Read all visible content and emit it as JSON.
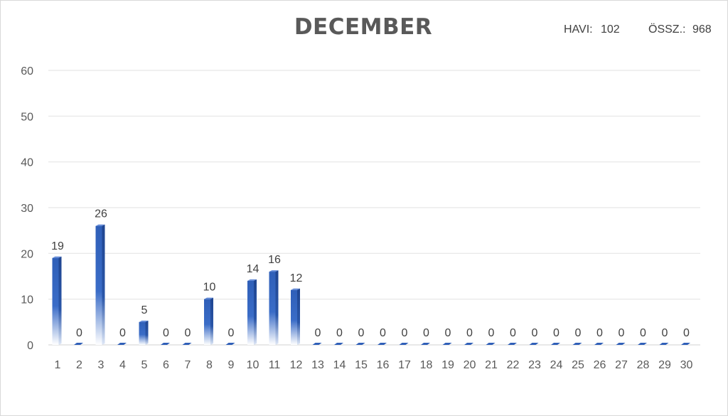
{
  "header": {
    "title": "DECEMBER",
    "havi_label": "HAVI:",
    "havi_value": "102",
    "ossz_label": "ÖSSZ.:",
    "ossz_value": "968"
  },
  "colors": {
    "bar_top": "#2f5fb8",
    "bar_side": "#1f4590",
    "grid": "#e6e6e6",
    "text": "#595959"
  },
  "chart_data": {
    "type": "bar",
    "title": "DECEMBER",
    "categories": [
      "1",
      "2",
      "3",
      "4",
      "5",
      "6",
      "7",
      "8",
      "9",
      "10",
      "11",
      "12",
      "13",
      "14",
      "15",
      "16",
      "17",
      "18",
      "19",
      "20",
      "21",
      "22",
      "23",
      "24",
      "25",
      "26",
      "27",
      "28",
      "29",
      "30"
    ],
    "values": [
      19,
      0,
      26,
      0,
      5,
      0,
      0,
      10,
      0,
      14,
      16,
      12,
      0,
      0,
      0,
      0,
      0,
      0,
      0,
      0,
      0,
      0,
      0,
      0,
      0,
      0,
      0,
      0,
      0,
      0
    ],
    "ylim": [
      0,
      60
    ],
    "yticks": [
      0,
      10,
      20,
      30,
      40,
      50,
      60
    ],
    "grid": true,
    "data_labels": true
  }
}
